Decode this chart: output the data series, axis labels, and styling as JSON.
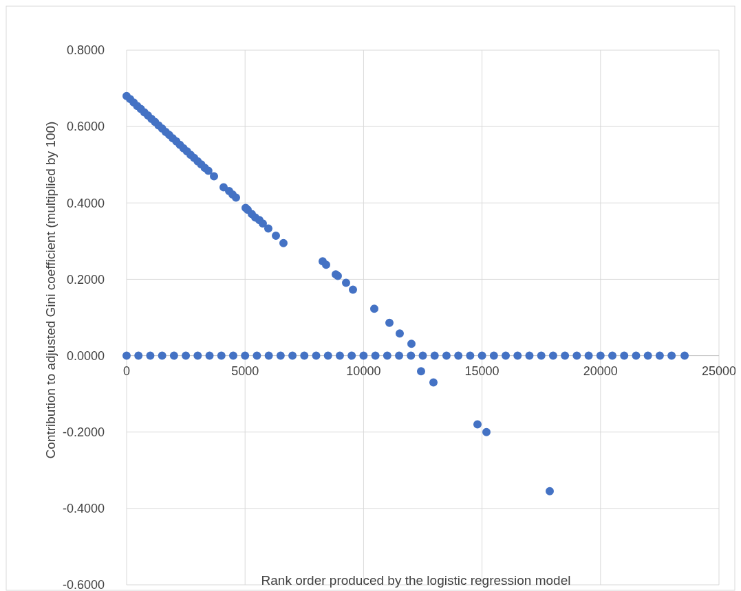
{
  "chart_data": {
    "type": "scatter",
    "xlabel": "Rank order produced by the logistic regression model",
    "ylabel": "Contribution to adjusted Gini coefficient (multiplied by 100)",
    "x": [
      0,
      150,
      300,
      450,
      600,
      750,
      900,
      1050,
      1200,
      1350,
      1500,
      1650,
      1800,
      1950,
      2100,
      2250,
      2400,
      2550,
      2700,
      2850,
      3000,
      3150,
      3300,
      3450,
      3688,
      4094,
      4326,
      4471,
      4617,
      5023,
      5110,
      5285,
      5430,
      5604,
      5749,
      5981,
      6301,
      6620,
      8275,
      8420,
      8827,
      8914,
      9262,
      9553,
      10453,
      11092,
      11527,
      12021,
      12427,
      12950,
      14808,
      15186,
      17857,
      0,
      500,
      1000,
      1500,
      2000,
      2500,
      3000,
      3500,
      4000,
      4500,
      5000,
      5500,
      6000,
      6500,
      7000,
      7500,
      8000,
      8500,
      9000,
      9500,
      10000,
      10500,
      11000,
      11500,
      12000,
      12500,
      13000,
      13500,
      14000,
      14500,
      15000,
      15500,
      16000,
      16500,
      17000,
      17500,
      18000,
      18500,
      19000,
      19500,
      20000,
      20500,
      21000,
      21500,
      22000,
      22500,
      23000,
      23550
    ],
    "series": [
      {
        "color": "#4472c4",
        "values": [
          0.68,
          0.672,
          0.663,
          0.654,
          0.646,
          0.637,
          0.629,
          0.62,
          0.612,
          0.603,
          0.595,
          0.586,
          0.578,
          0.569,
          0.561,
          0.552,
          0.543,
          0.535,
          0.526,
          0.518,
          0.509,
          0.501,
          0.492,
          0.484,
          0.47,
          0.441,
          0.431,
          0.422,
          0.414,
          0.387,
          0.382,
          0.371,
          0.362,
          0.355,
          0.346,
          0.333,
          0.314,
          0.295,
          0.247,
          0.238,
          0.213,
          0.209,
          0.191,
          0.173,
          0.123,
          0.086,
          0.058,
          0.031,
          -0.041,
          -0.07,
          -0.18,
          -0.2,
          -0.355,
          0,
          0,
          0,
          0,
          0,
          0,
          0,
          0,
          0,
          0,
          0,
          0,
          0,
          0,
          0,
          0,
          0,
          0,
          0,
          0,
          0,
          0,
          0,
          0,
          0,
          0,
          0,
          0,
          0,
          0,
          0,
          0,
          0,
          0,
          0,
          0,
          0,
          0,
          0,
          0,
          0,
          0,
          0,
          0,
          0,
          0,
          0,
          0
        ]
      }
    ],
    "xlim": [
      0,
      25000
    ],
    "xticks": [
      0,
      5000,
      10000,
      15000,
      20000,
      25000
    ],
    "ylim": [
      -0.6,
      0.8
    ],
    "yticks": [
      {
        "value": -0.6,
        "label": "-0.6000"
      },
      {
        "value": -0.4,
        "label": "-0.4000"
      },
      {
        "value": -0.2,
        "label": "-0.2000"
      },
      {
        "value": 0,
        "label": "0.0000"
      },
      {
        "value": 0.2,
        "label": "0.2000"
      },
      {
        "value": 0.4,
        "label": "0.4000"
      },
      {
        "value": 0.6,
        "label": "0.6000"
      },
      {
        "value": 0.8,
        "label": "0.8000"
      }
    ],
    "grid": true,
    "marker": "circle"
  }
}
